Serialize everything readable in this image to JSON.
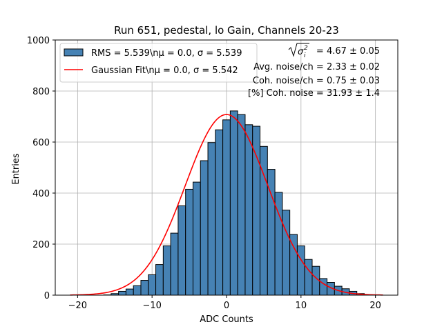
{
  "chart_data": {
    "type": "bar",
    "title": "Run 651, pedestal, lo Gain, Channels 20-23",
    "xlabel": "ADC Counts",
    "ylabel": "Entries",
    "xlim": [
      -23,
      23
    ],
    "ylim": [
      0,
      1000
    ],
    "grid": true,
    "legend_position": "top-left",
    "xticks": [
      -20,
      -10,
      0,
      10,
      20
    ],
    "xtick_labels": [
      "−20",
      "−10",
      "0",
      "10",
      "20"
    ],
    "yticks": [
      0,
      200,
      400,
      600,
      800,
      1000
    ],
    "ytick_labels": [
      "0",
      "200",
      "400",
      "600",
      "800",
      "1000"
    ],
    "bin_width": 1,
    "bin_centers": [
      -16,
      -15,
      -14,
      -13,
      -12,
      -11,
      -10,
      -9,
      -8,
      -7,
      -6,
      -5,
      -4,
      -3,
      -2,
      -1,
      0,
      1,
      2,
      3,
      4,
      5,
      6,
      7,
      8,
      9,
      10,
      11,
      12,
      13,
      14,
      15,
      16,
      17,
      18,
      19
    ],
    "values": [
      1,
      6,
      15,
      24,
      37,
      58,
      80,
      120,
      193,
      243,
      350,
      415,
      443,
      527,
      598,
      648,
      687,
      722,
      708,
      668,
      662,
      583,
      493,
      403,
      333,
      238,
      193,
      140,
      113,
      65,
      50,
      35,
      25,
      15,
      6,
      1
    ],
    "fit": {
      "mu": 0.0,
      "sigma": 5.542,
      "amplitude": 708,
      "xrange": [
        -21,
        21
      ]
    },
    "series": [
      {
        "name": "RMS = 5.539\\nμ = 0.0, σ = 5.539",
        "color": "#4682b4"
      },
      {
        "name": "Gaussian Fit\\nμ = 0.0, σ = 5.542",
        "color": "#ff0000"
      }
    ],
    "stats": {
      "line1_value": " = 4.67 ± 0.05",
      "line2": "Avg. noise/ch = 2.33 ± 0.02",
      "line3": "Coh. noise/ch = 0.75 ± 0.03",
      "line4": "[%] Coh. noise = 31.93 ± 1.4"
    }
  }
}
